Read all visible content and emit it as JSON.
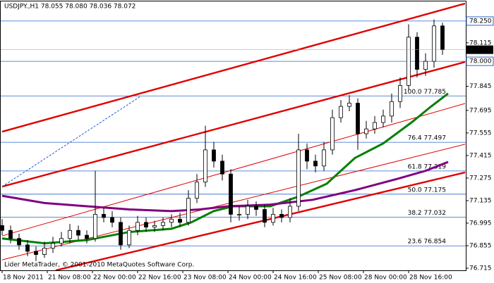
{
  "chart_data": {
    "type": "candlestick",
    "title": "USDJPY.,H1 78.055 78.080 78.036 78.072",
    "footer": "Lider MetaTrader, © 2001-2010 MetaQuotes Software Corp.",
    "xlim": [
      -0.75,
      164.25
    ],
    "xticks": [
      {
        "value": 0,
        "label": "18 Nov 2011"
      },
      {
        "value": 16,
        "label": "21 Nov 08:00"
      },
      {
        "value": 32,
        "label": "22 Nov 00:00"
      },
      {
        "value": 48,
        "label": "22 Nov 16:00"
      },
      {
        "value": 64,
        "label": "23 Nov 08:00"
      },
      {
        "value": 80,
        "label": "24 Nov 00:00"
      },
      {
        "value": 96,
        "label": "24 Nov 16:00"
      },
      {
        "value": 112,
        "label": "25 Nov 08:00"
      },
      {
        "value": 128,
        "label": "28 Nov 00:00"
      },
      {
        "value": 144,
        "label": "28 Nov 16:00"
      }
    ],
    "ylim": [
      76.702,
      78.372
    ],
    "yticks": [
      78.115,
      77.845,
      77.695,
      77.555,
      77.415,
      77.275,
      77.135,
      76.995,
      76.855,
      76.715
    ],
    "hlines": [
      {
        "value": 78.25,
        "label": "78.250"
      },
      {
        "value": 78,
        "label": "78.000"
      }
    ],
    "last_price": 78.072,
    "up_color": "#ffffff",
    "down_color": "#000000",
    "x": [
      0,
      3,
      6,
      9,
      12,
      15,
      18,
      21,
      24,
      27,
      30,
      33,
      36,
      39,
      42,
      45,
      48,
      51,
      54,
      57,
      60,
      63,
      66,
      69,
      72,
      75,
      78,
      81,
      84,
      87,
      90,
      93,
      96,
      99,
      102,
      105,
      108,
      111,
      114,
      117,
      120,
      123,
      126,
      129,
      132,
      135,
      138,
      141,
      144,
      147,
      150,
      153,
      156
    ],
    "open": [
      76.98,
      76.95,
      76.9,
      76.86,
      76.82,
      76.8,
      76.84,
      76.87,
      76.9,
      76.95,
      76.92,
      76.9,
      77.05,
      77.03,
      77.0,
      76.86,
      76.95,
      77.0,
      76.97,
      76.98,
      77.0,
      77.02,
      77.0,
      77.15,
      77.25,
      77.45,
      77.38,
      77.3,
      77.05,
      77.05,
      77.1,
      77.08,
      77.0,
      77.05,
      77.03,
      77.1,
      77.45,
      77.38,
      77.35,
      77.45,
      77.65,
      77.72,
      77.74,
      77.55,
      77.58,
      77.62,
      77.66,
      77.75,
      77.85,
      78.15,
      77.95,
      78.0,
      78.22
    ],
    "high": [
      77.02,
      76.98,
      76.93,
      76.89,
      76.85,
      76.88,
      76.91,
      76.94,
      76.99,
      76.98,
      76.95,
      77.32,
      77.09,
      77.07,
      77.03,
      76.98,
      77.04,
      77.03,
      77.01,
      77.03,
      77.05,
      77.06,
      77.2,
      77.3,
      77.6,
      77.5,
      77.42,
      77.33,
      77.1,
      77.14,
      77.13,
      77.11,
      77.09,
      77.08,
      77.15,
      77.55,
      77.49,
      77.42,
      77.5,
      77.7,
      77.76,
      77.79,
      77.77,
      77.63,
      77.66,
      77.7,
      77.8,
      77.9,
      78.23,
      78.18,
      78.05,
      78.26,
      78.24
    ],
    "low": [
      76.92,
      76.87,
      76.83,
      76.79,
      76.76,
      76.78,
      76.81,
      76.85,
      76.87,
      76.89,
      76.87,
      76.88,
      77.0,
      76.97,
      76.83,
      76.84,
      76.92,
      76.94,
      76.94,
      76.95,
      76.97,
      76.97,
      76.98,
      77.12,
      77.22,
      77.34,
      77.26,
      77.0,
      77.01,
      77.02,
      77.04,
      76.97,
      76.98,
      77.0,
      77.0,
      77.07,
      77.33,
      77.31,
      77.32,
      77.42,
      77.62,
      77.69,
      77.45,
      77.52,
      77.55,
      77.59,
      77.62,
      77.71,
      77.82,
      77.9,
      77.91,
      77.96,
      78.04
    ],
    "close": [
      76.95,
      76.9,
      76.86,
      76.82,
      76.8,
      76.84,
      76.87,
      76.9,
      76.95,
      76.92,
      76.9,
      77.05,
      77.03,
      77.0,
      76.86,
      76.95,
      77.0,
      76.97,
      76.98,
      77.0,
      77.02,
      77.0,
      77.15,
      77.25,
      77.45,
      77.38,
      77.3,
      77.05,
      77.05,
      77.1,
      77.08,
      77.0,
      77.05,
      77.03,
      77.1,
      77.45,
      77.38,
      77.35,
      77.45,
      77.65,
      77.72,
      77.74,
      77.55,
      77.58,
      77.62,
      77.66,
      77.75,
      77.85,
      78.15,
      77.95,
      78.0,
      78.22,
      78.072
    ],
    "series": [
      {
        "color": "#008000",
        "x": [
          0,
          15,
          30,
          45,
          60,
          67,
          75,
          82,
          95,
          105,
          115,
          125,
          135,
          145,
          152,
          158
        ],
        "values": [
          76.9,
          76.87,
          76.89,
          76.94,
          76.96,
          77.0,
          77.07,
          77.1,
          77.1,
          77.16,
          77.24,
          77.4,
          77.49,
          77.62,
          77.72,
          77.8
        ]
      },
      {
        "color": "#800080",
        "x": [
          0,
          15,
          30,
          45,
          60,
          70,
          80,
          95,
          110,
          125,
          140,
          150,
          158
        ],
        "values": [
          77.165,
          77.12,
          77.1,
          77.08,
          77.07,
          77.08,
          77.1,
          77.11,
          77.14,
          77.2,
          77.27,
          77.32,
          77.375
        ]
      }
    ],
    "trendlines": [
      {
        "style": "thick",
        "color": "#e00000",
        "x": [
          0,
          164
        ],
        "values": [
          77.563,
          78.359
        ]
      },
      {
        "style": "thick",
        "color": "#e00000",
        "x": [
          0,
          164
        ],
        "values": [
          77.222,
          77.996
        ]
      },
      {
        "style": "thick",
        "color": "#e00000",
        "x": [
          19,
          164
        ],
        "values": [
          76.702,
          77.31
        ]
      },
      {
        "style": "thin",
        "color": "#e00000",
        "x": [
          0,
          164
        ],
        "values": [
          76.916,
          77.738
        ]
      },
      {
        "style": "thin",
        "color": "#e00000",
        "x": [
          0,
          164
        ],
        "values": [
          76.767,
          77.485
        ]
      },
      {
        "style": "dashed",
        "color": "#1e5bd6",
        "x": [
          0,
          49
        ],
        "values": [
          77.222,
          77.782
        ]
      }
    ],
    "fib_color": "#2a66c9",
    "fib_levels": [
      {
        "value": 77.785,
        "label": "100.0 77.785"
      },
      {
        "value": 77.497,
        "label": "76.4 77.497"
      },
      {
        "value": 77.319,
        "label": "61.8 77.319"
      },
      {
        "value": 77.175,
        "label": "50.0 77.175"
      },
      {
        "value": 77.032,
        "label": "38.2 77.032"
      },
      {
        "value": 76.854,
        "label": "23.6 76.854"
      }
    ]
  }
}
